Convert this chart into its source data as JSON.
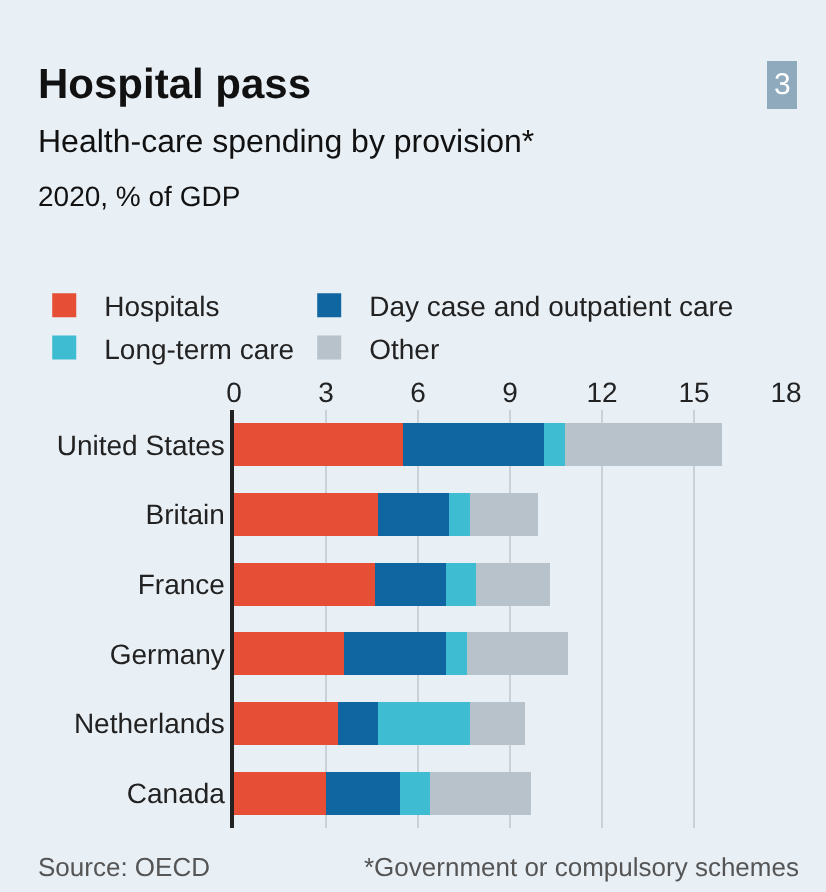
{
  "chart_data": {
    "type": "bar",
    "orientation": "horizontal",
    "stacked": true,
    "title": "Hospital pass",
    "subtitle": "Health-care spending by provision*",
    "categories": [
      "United States",
      "Britain",
      "France",
      "Germany",
      "Netherlands",
      "Canada"
    ],
    "series": [
      {
        "name": "Hospitals",
        "color": "#e64e35",
        "values": [
          5.5,
          4.7,
          4.6,
          3.6,
          3.4,
          3.0
        ]
      },
      {
        "name": "Day case and outpatient care",
        "color": "#1066a0",
        "values": [
          4.6,
          2.3,
          2.3,
          3.3,
          1.3,
          2.4
        ]
      },
      {
        "name": "Long-term care",
        "color": "#3ebcd2",
        "values": [
          0.7,
          0.7,
          1.0,
          0.7,
          3.0,
          1.0
        ]
      },
      {
        "name": "Other",
        "color": "#b7c2ca",
        "values": [
          5.1,
          2.2,
          2.4,
          3.3,
          1.8,
          3.3
        ]
      }
    ],
    "xlim": [
      0,
      18
    ],
    "xticks": [
      0,
      3,
      6,
      9,
      12,
      15,
      18
    ],
    "grid": "x",
    "legend": "top left",
    "annotations": [
      "2020, % of GDP",
      "Source: OECD",
      "*Government or compulsory schemes",
      "3"
    ]
  }
}
